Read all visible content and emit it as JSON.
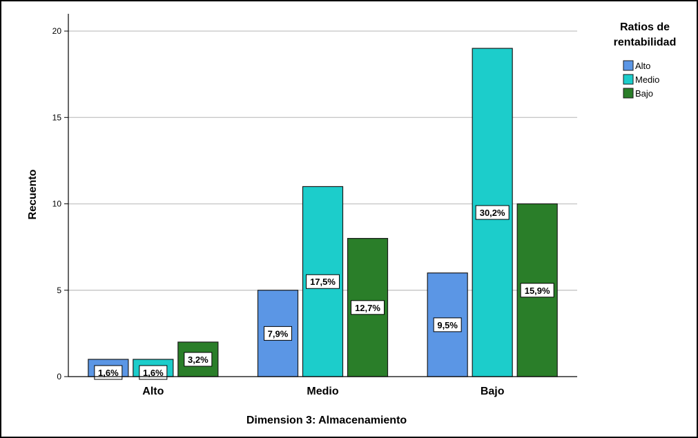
{
  "chart_data": {
    "type": "bar",
    "xlabel": "Dimension 3: Almacenamiento",
    "ylabel": "Recuento",
    "categories": [
      "Alto",
      "Medio",
      "Bajo"
    ],
    "ylim": [
      0,
      21
    ],
    "yticks": [
      0,
      5,
      10,
      15,
      20
    ],
    "grid": true,
    "legend": {
      "title_lines": [
        "Ratios de",
        "rentabilidad"
      ],
      "placement": "top-right"
    },
    "series": [
      {
        "name": "Alto",
        "color": "#5b96e5",
        "values": [
          1,
          5,
          6
        ],
        "labels": [
          "1,6%",
          "7,9%",
          "9,5%"
        ]
      },
      {
        "name": "Medio",
        "color": "#1ccdcb",
        "values": [
          1,
          11,
          19
        ],
        "labels": [
          "1,6%",
          "17,5%",
          "30,2%"
        ]
      },
      {
        "name": "Bajo",
        "color": "#2a7e29",
        "values": [
          2,
          8,
          10
        ],
        "labels": [
          "3,2%",
          "12,7%",
          "15,9%"
        ]
      }
    ]
  }
}
